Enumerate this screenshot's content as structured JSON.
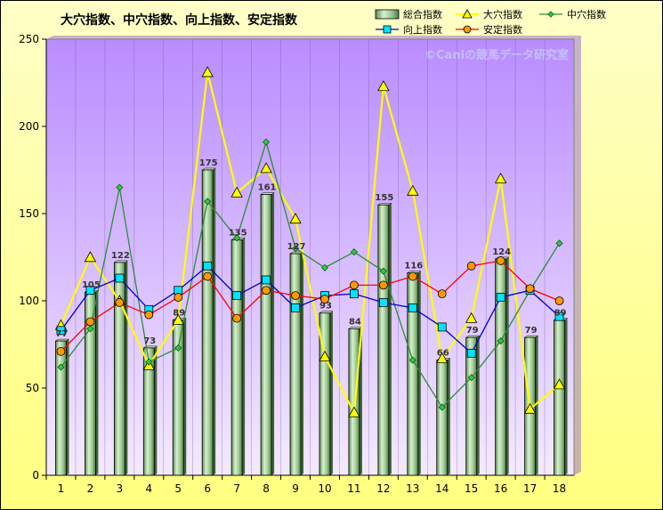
{
  "chart_data": {
    "type": "bar",
    "title": "大穴指数、中穴指数、向上指数、安定指数",
    "watermark": "©Caniの競馬データ研究室",
    "categories": [
      "1",
      "2",
      "3",
      "4",
      "5",
      "6",
      "7",
      "8",
      "9",
      "10",
      "11",
      "12",
      "13",
      "14",
      "15",
      "16",
      "17",
      "18"
    ],
    "ylim": [
      0,
      250
    ],
    "yticks": [
      0,
      50,
      100,
      150,
      200,
      250
    ],
    "grid": false,
    "legend_position": "top-right",
    "colors": {
      "plot_bg_top": "#b98cff",
      "plot_bg_bottom": "#f4eaff",
      "bar": "#9bc78f",
      "daiana": "#ffff00",
      "chuana": "#2e8b3a",
      "kojo": "#0000cc",
      "antei": "#ff0000"
    },
    "series": [
      {
        "name": "総合指数",
        "kind": "bar",
        "values": [
          77,
          105,
          122,
          73,
          89,
          175,
          135,
          161,
          127,
          93,
          84,
          155,
          116,
          66,
          79,
          124,
          79,
          89
        ],
        "labels": [
          "77",
          "105",
          "122",
          "73",
          "89",
          "175",
          "135",
          "161",
          "127",
          "93",
          "84",
          "155",
          "116",
          "66",
          "79",
          "124",
          "79",
          "89"
        ]
      },
      {
        "name": "大穴指数",
        "kind": "line",
        "marker": "triangle",
        "values": [
          86,
          125,
          100,
          63,
          89,
          231,
          162,
          176,
          147,
          68,
          36,
          223,
          163,
          67,
          90,
          170,
          38,
          52
        ]
      },
      {
        "name": "中穴指数",
        "kind": "line",
        "marker": "diamond",
        "values": [
          62,
          84,
          165,
          65,
          73,
          157,
          136,
          191,
          130,
          119,
          128,
          117,
          66,
          39,
          56,
          77,
          106,
          133
        ]
      },
      {
        "name": "向上指数",
        "kind": "line",
        "marker": "square",
        "values": [
          83,
          106,
          113,
          95,
          106,
          120,
          103,
          112,
          96,
          103,
          104,
          99,
          96,
          85,
          70,
          102,
          106,
          91
        ]
      },
      {
        "name": "安定指数",
        "kind": "line",
        "marker": "circle",
        "values": [
          71,
          88,
          99,
          92,
          102,
          114,
          90,
          106,
          103,
          101,
          109,
          109,
          114,
          104,
          120,
          123,
          107,
          100
        ]
      }
    ]
  }
}
